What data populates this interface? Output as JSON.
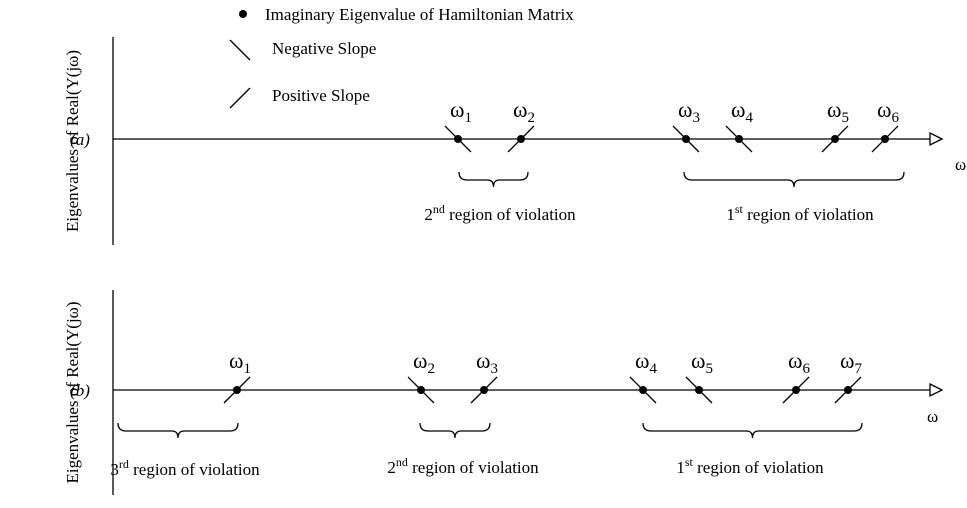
{
  "legend": [
    {
      "label": "Imaginary Eigenvalue of Hamiltonian Matrix",
      "marker": "dot"
    },
    {
      "label": "Negative Slope",
      "marker": "negative"
    },
    {
      "label": "Positive Slope",
      "marker": "positive"
    }
  ],
  "panels": [
    {
      "label": "(a)",
      "y_axis_label": "Eigenvalues of Real(Y(jω)",
      "x_axis_label": "ω",
      "points": [
        {
          "symbol": "ω",
          "sub": "1",
          "slope": "negative"
        },
        {
          "symbol": "ω",
          "sub": "2",
          "slope": "positive"
        },
        {
          "symbol": "ω",
          "sub": "3",
          "slope": "negative"
        },
        {
          "symbol": "ω",
          "sub": "4",
          "slope": "negative"
        },
        {
          "symbol": "ω",
          "sub": "5",
          "slope": "positive"
        },
        {
          "symbol": "ω",
          "sub": "6",
          "slope": "positive"
        }
      ],
      "regions": [
        {
          "ordinal": "2",
          "suffix": "nd",
          "text": "region of violation"
        },
        {
          "ordinal": "1",
          "suffix": "st",
          "text": "region of violation"
        }
      ]
    },
    {
      "label": "(b)",
      "y_axis_label": "Eigenvalues of Real(Y(jω)",
      "x_axis_label": "ω",
      "points": [
        {
          "symbol": "ω",
          "sub": "1",
          "slope": "positive"
        },
        {
          "symbol": "ω",
          "sub": "2",
          "slope": "negative"
        },
        {
          "symbol": "ω",
          "sub": "3",
          "slope": "positive"
        },
        {
          "symbol": "ω",
          "sub": "4",
          "slope": "negative"
        },
        {
          "symbol": "ω",
          "sub": "5",
          "slope": "negative"
        },
        {
          "symbol": "ω",
          "sub": "6",
          "slope": "positive"
        },
        {
          "symbol": "ω",
          "sub": "7",
          "slope": "positive"
        }
      ],
      "regions": [
        {
          "ordinal": "3",
          "suffix": "rd",
          "text": "region of violation"
        },
        {
          "ordinal": "2",
          "suffix": "nd",
          "text": "region of violation"
        },
        {
          "ordinal": "1",
          "suffix": "st",
          "text": "region of violation"
        }
      ]
    }
  ]
}
